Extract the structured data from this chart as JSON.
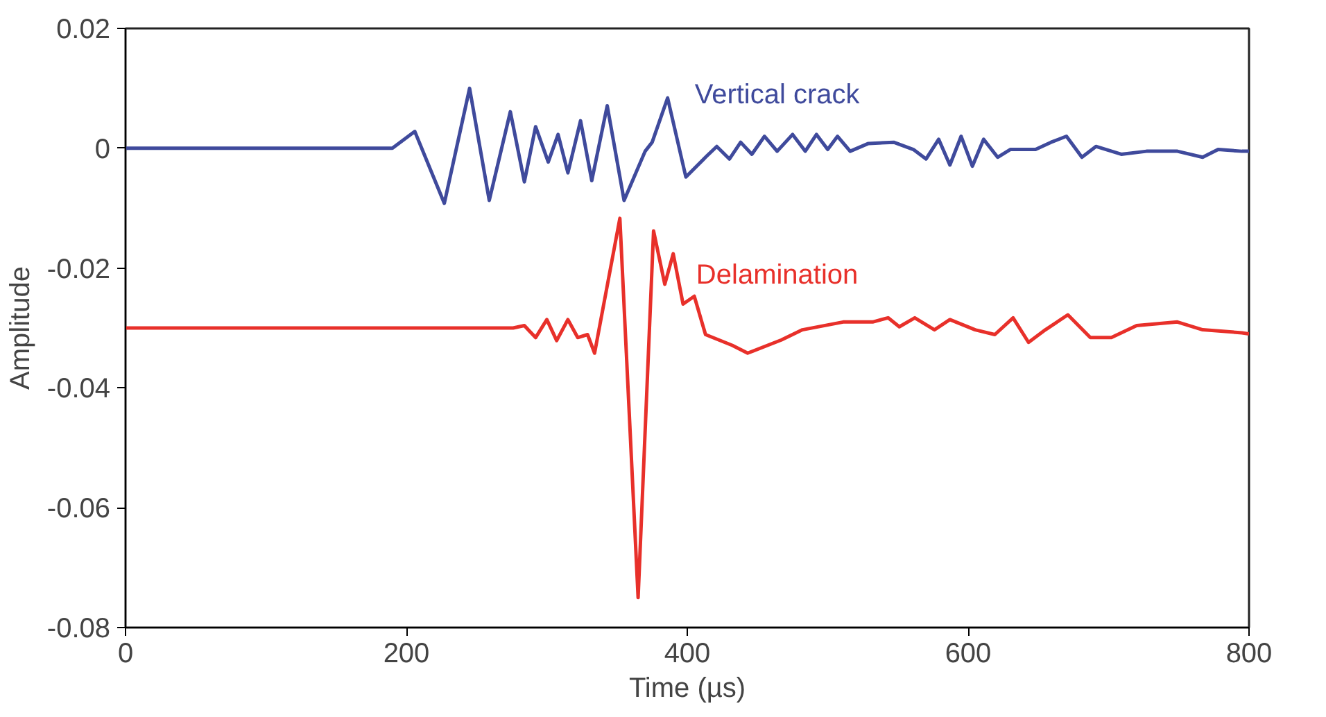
{
  "chart_data": {
    "type": "line",
    "xlabel": "Time (µs)",
    "ylabel": "Amplitude",
    "xlim": [
      0,
      800
    ],
    "xticks": [
      0,
      200,
      400,
      600,
      800
    ],
    "ylim": [
      -0.08,
      0.02
    ],
    "yticks": [
      {
        "value": -0.08,
        "label": "-0.08"
      },
      {
        "value": -0.06,
        "label": "-0.06"
      },
      {
        "value": -0.04,
        "label": "-0.04"
      },
      {
        "value": -0.02,
        "label": "-0.02"
      },
      {
        "value": 0,
        "label": "0"
      },
      {
        "value": 0.02,
        "label": "0.02"
      }
    ],
    "grid": false,
    "marker": "none",
    "line_style": "solid",
    "series": [
      {
        "name": "Vertical crack",
        "color": "#3f4a9c",
        "x": [
          0,
          190,
          206,
          227,
          245,
          259,
          274,
          284,
          292,
          301,
          308,
          315,
          324,
          332,
          343,
          355,
          370,
          375,
          386,
          399,
          413,
          421,
          430,
          438,
          446,
          455,
          464,
          475,
          484,
          492,
          500,
          507,
          516,
          529,
          547,
          561,
          570,
          579,
          587,
          595,
          603,
          611,
          621,
          630,
          648,
          659,
          670,
          681,
          691,
          709,
          727,
          749,
          767,
          778,
          795,
          800
        ],
        "values": [
          0,
          0,
          0.0028,
          -0.0092,
          0.01,
          -0.0087,
          0.0061,
          -0.0056,
          0.0036,
          -0.0023,
          0.0023,
          -0.0041,
          0.0046,
          -0.0054,
          0.0071,
          -0.0087,
          -0.0005,
          0.001,
          0.0084,
          -0.0048,
          -0.0015,
          0.0003,
          -0.0018,
          0.001,
          -0.001,
          0.002,
          -0.0005,
          0.0023,
          -0.0005,
          0.0023,
          -0.0002,
          0.002,
          -0.0005,
          0.0008,
          0.001,
          -0.0002,
          -0.0018,
          0.0015,
          -0.0028,
          0.002,
          -0.003,
          0.0015,
          -0.0015,
          -0.0002,
          -0.0002,
          0.001,
          0.002,
          -0.0015,
          0.0003,
          -0.001,
          -0.0005,
          -0.0005,
          -0.0015,
          -0.0002,
          -0.0005,
          -0.0005
        ]
      },
      {
        "name": "Delamination",
        "color": "#e8302a",
        "x": [
          0,
          229,
          276,
          284,
          292,
          300,
          307,
          315,
          322,
          329,
          334,
          352,
          365,
          376,
          384,
          390,
          397,
          405,
          413,
          432,
          443,
          467,
          482,
          511,
          532,
          543,
          551,
          562,
          576,
          587,
          605,
          619,
          632,
          643,
          655,
          671,
          687,
          702,
          720,
          749,
          767,
          795,
          800
        ],
        "values": [
          -0.03,
          -0.03,
          -0.03,
          -0.0296,
          -0.0316,
          -0.0286,
          -0.0321,
          -0.0286,
          -0.0316,
          -0.0311,
          -0.0342,
          -0.0117,
          -0.075,
          -0.0138,
          -0.0227,
          -0.0176,
          -0.026,
          -0.0247,
          -0.0311,
          -0.0329,
          -0.0342,
          -0.032,
          -0.0303,
          -0.029,
          -0.029,
          -0.0283,
          -0.0298,
          -0.0283,
          -0.0303,
          -0.0286,
          -0.0303,
          -0.0311,
          -0.0283,
          -0.0324,
          -0.0303,
          -0.0278,
          -0.0316,
          -0.0316,
          -0.0296,
          -0.029,
          -0.0303,
          -0.0308,
          -0.031
        ]
      }
    ]
  }
}
